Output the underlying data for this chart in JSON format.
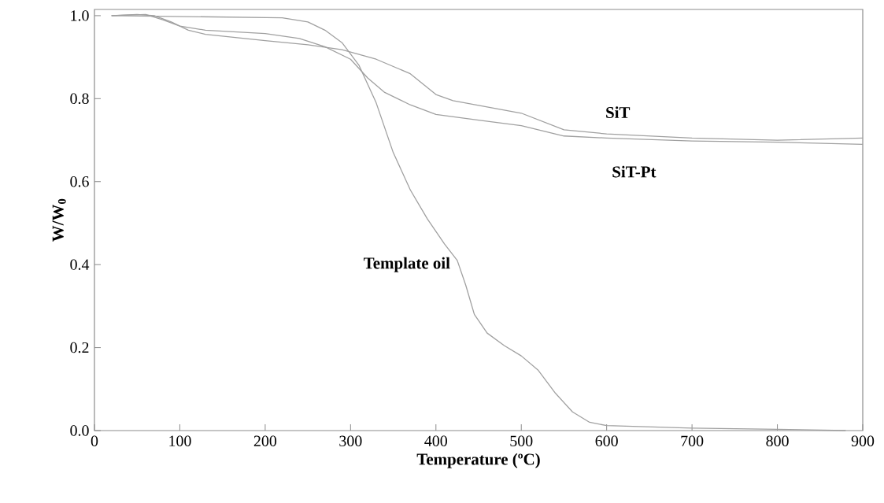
{
  "chart_data": {
    "type": "line",
    "xlabel": "Temperature (ºC)",
    "ylabel": "W/W$_{0}$",
    "xlim": [
      0,
      900
    ],
    "ylim": [
      0,
      1.015
    ],
    "xticks": [
      0,
      100,
      200,
      300,
      400,
      500,
      600,
      700,
      800,
      900
    ],
    "yticks": [
      {
        "value": 0,
        "label": "0.0"
      },
      {
        "value": 0.2,
        "label": "0.2"
      },
      {
        "value": 0.4,
        "label": "0.4"
      },
      {
        "value": 0.6,
        "label": "0.6"
      },
      {
        "value": 0.8,
        "label": "0.8"
      },
      {
        "value": 1.0,
        "label": "1.0"
      }
    ],
    "grid": false,
    "legend": false,
    "marker": "none",
    "line_style": "solid",
    "series": [
      {
        "name": "SiT",
        "color": "#a0a0a0",
        "x": [
          20,
          50,
          70,
          90,
          110,
          130,
          200,
          250,
          290,
          330,
          370,
          400,
          420,
          500,
          550,
          600,
          700,
          800,
          900
        ],
        "values": [
          1.0,
          1.003,
          1.0,
          0.985,
          0.965,
          0.955,
          0.94,
          0.93,
          0.918,
          0.895,
          0.86,
          0.81,
          0.795,
          0.765,
          0.725,
          0.715,
          0.705,
          0.7,
          0.705
        ]
      },
      {
        "name": "SiT-Pt",
        "color": "#a0a0a0",
        "x": [
          20,
          60,
          80,
          100,
          130,
          200,
          240,
          270,
          300,
          320,
          340,
          370,
          400,
          450,
          500,
          550,
          600,
          700,
          800,
          900
        ],
        "values": [
          1.0,
          1.003,
          0.99,
          0.975,
          0.965,
          0.957,
          0.945,
          0.925,
          0.895,
          0.85,
          0.815,
          0.785,
          0.762,
          0.748,
          0.735,
          0.71,
          0.705,
          0.698,
          0.695,
          0.69
        ]
      },
      {
        "name": "Template oil",
        "color": "#a0a0a0",
        "x": [
          20,
          220,
          250,
          270,
          290,
          310,
          330,
          350,
          370,
          390,
          410,
          425,
          435,
          445,
          460,
          480,
          500,
          520,
          540,
          560,
          580,
          600,
          700,
          800,
          880
        ],
        "values": [
          1.0,
          0.995,
          0.985,
          0.965,
          0.935,
          0.88,
          0.79,
          0.67,
          0.58,
          0.51,
          0.45,
          0.41,
          0.35,
          0.28,
          0.235,
          0.205,
          0.18,
          0.145,
          0.09,
          0.045,
          0.02,
          0.012,
          0.006,
          0.003,
          0.0
        ]
      }
    ]
  }
}
